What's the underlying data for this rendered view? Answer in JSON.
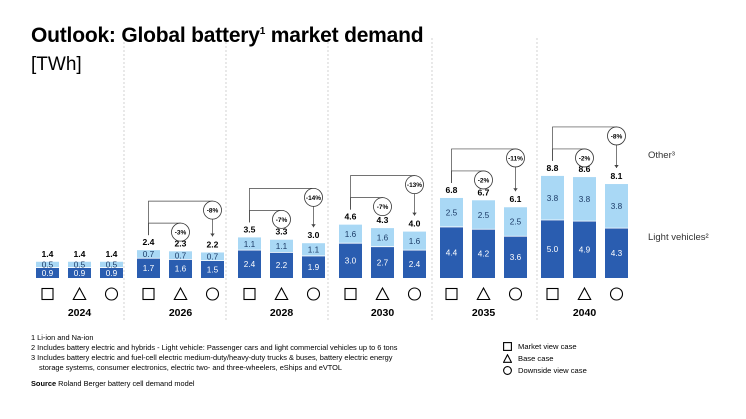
{
  "title": {
    "text": "Outlook: Global battery",
    "sup": "1",
    "rest": " market demand"
  },
  "subtitle": "[TWh]",
  "chart_data": {
    "type": "bar",
    "stacked": true,
    "groups": [
      "2024",
      "2026",
      "2028",
      "2030",
      "2035",
      "2040"
    ],
    "cases": [
      "Market view case",
      "Base case",
      "Downside view case"
    ],
    "series": [
      {
        "name": "Light vehicles²",
        "color": "#2a5db0",
        "values": [
          [
            0.9,
            0.9,
            0.9
          ],
          [
            1.7,
            1.6,
            1.5
          ],
          [
            2.4,
            2.2,
            1.9
          ],
          [
            3.0,
            2.7,
            2.4
          ],
          [
            4.4,
            4.2,
            3.6
          ],
          [
            5.0,
            4.9,
            4.3
          ]
        ]
      },
      {
        "name": "Other³",
        "color": "#a9d8f5",
        "values": [
          [
            0.5,
            0.5,
            0.5
          ],
          [
            0.7,
            0.7,
            0.7
          ],
          [
            1.1,
            1.1,
            1.1
          ],
          [
            1.6,
            1.6,
            1.6
          ],
          [
            2.5,
            2.5,
            2.5
          ],
          [
            3.8,
            3.8,
            3.8
          ]
        ]
      }
    ],
    "totals": [
      [
        "1.4",
        "1.4",
        "1.4"
      ],
      [
        "2.4",
        "2.3",
        "2.2"
      ],
      [
        "3.5",
        "3.3",
        "3.0"
      ],
      [
        "4.6",
        "4.3",
        "4.0"
      ],
      [
        "6.8",
        "6.7",
        "6.1"
      ],
      [
        "8.8",
        "8.6",
        "8.1"
      ]
    ],
    "annotations": [
      null,
      [
        "-3%",
        "-8%"
      ],
      [
        "-7%",
        "-14%"
      ],
      [
        "-7%",
        "-13%"
      ],
      [
        "-2%",
        "-11%"
      ],
      [
        "-2%",
        "-8%"
      ]
    ],
    "series_labels": {
      "other": "Other³",
      "light": "Light vehicles²"
    }
  },
  "footnotes": [
    "1 Li-ion and Na-ion",
    "2 Includes battery electric and hybrids - Light vehicle: Passenger cars and light commercial vehicles up to 6 tons",
    "3 Includes battery electric and fuel-cell electric medium-duty/heavy-duty trucks & buses, battery electric energy",
    "storage systems, consumer electronics, electric two- and three-wheelers, eShips and eVTOL"
  ],
  "source": {
    "label": "Source",
    "text": " Roland Berger battery cell demand model"
  },
  "legend": [
    {
      "icon": "square-icon",
      "label": "Market view case"
    },
    {
      "icon": "triangle-icon",
      "label": "Base case"
    },
    {
      "icon": "circle-icon",
      "label": "Downside view case"
    }
  ]
}
